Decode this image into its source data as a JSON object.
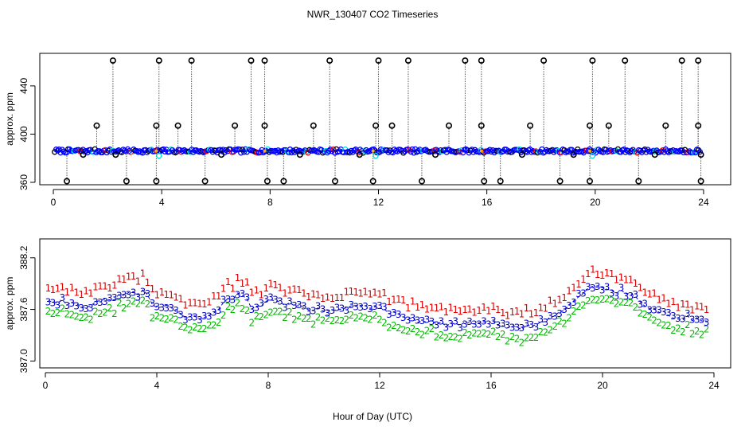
{
  "title": "NWR_130407  CO2 Timeseries",
  "chart_data": [
    {
      "type": "scatter",
      "panel": "top",
      "ylabel": "approx. ppm",
      "xlim": [
        -0.5,
        25.0
      ],
      "ylim": [
        358,
        467
      ],
      "xticks": [
        0,
        4,
        8,
        12,
        16,
        20,
        24
      ],
      "yticks": [
        360,
        400,
        440
      ],
      "baseline": 386,
      "colors": [
        "#000000",
        "#0000ff",
        "#00dddd",
        "#ff0000"
      ],
      "spike_times": [
        2.2,
        3.9,
        5.1,
        7.3,
        7.8,
        10.2,
        12.0,
        13.1,
        15.2,
        15.8,
        18.1,
        19.9,
        21.1,
        23.2,
        23.8
      ],
      "spike_value": 461,
      "mid_times": [
        1.6,
        3.8,
        4.6,
        6.7,
        7.8,
        9.6,
        11.9,
        12.5,
        14.6,
        15.8,
        17.6,
        19.8,
        20.5,
        22.6,
        23.8
      ],
      "mid_value": 407,
      "low_times": [
        0.5,
        2.7,
        3.8,
        5.6,
        7.9,
        8.5,
        10.4,
        11.8,
        13.6,
        15.9,
        16.5,
        18.7,
        19.8,
        21.6,
        23.9
      ],
      "low_value": 361,
      "near_low_times": [
        1.1,
        2.3,
        6.2,
        9.1,
        11.3,
        14.1,
        17.3,
        19.2,
        22.2,
        23.9
      ],
      "near_low_value": 383
    },
    {
      "type": "scatter",
      "panel": "bottom",
      "ylabel": "approx. ppm",
      "xlabel": "Hour of Day (UTC)",
      "xlim": [
        -0.2,
        24.6
      ],
      "ylim": [
        386.92,
        388.42
      ],
      "xticks": [
        0,
        4,
        8,
        12,
        16,
        20,
        24
      ],
      "yticks": [
        387.0,
        387.6,
        388.2
      ],
      "ytick_labels": [
        "387.0",
        "387.6",
        "388.2"
      ],
      "series": [
        {
          "name": "1",
          "symbol": "1",
          "color": "#dd0000",
          "offset": 0.16
        },
        {
          "name": "2",
          "symbol": "2",
          "color": "#00bb00",
          "offset": -0.13
        },
        {
          "name": "3",
          "symbol": "3",
          "color": "#0000cc",
          "offset": 0.0
        }
      ],
      "trend": {
        "x": [
          0.0,
          0.5,
          1.0,
          1.5,
          2.0,
          2.5,
          3.0,
          3.5,
          4.0,
          4.5,
          5.0,
          5.5,
          6.0,
          6.5,
          7.0,
          7.5,
          8.0,
          8.5,
          9.0,
          9.5,
          10.0,
          10.5,
          11.0,
          11.5,
          12.0,
          12.5,
          13.0,
          13.5,
          14.0,
          14.5,
          15.0,
          15.5,
          16.0,
          16.5,
          17.0,
          17.5,
          18.0,
          18.5,
          19.0,
          19.5,
          20.0,
          20.5,
          21.0,
          21.5,
          22.0,
          22.5,
          23.0,
          23.5,
          23.8
        ],
        "y": [
          387.72,
          387.7,
          387.66,
          387.64,
          387.68,
          387.74,
          387.78,
          387.8,
          387.62,
          387.62,
          387.52,
          387.5,
          387.56,
          387.7,
          387.78,
          387.6,
          387.72,
          387.68,
          387.64,
          387.6,
          387.58,
          387.62,
          387.64,
          387.62,
          387.6,
          387.55,
          387.5,
          387.46,
          387.44,
          387.42,
          387.42,
          387.46,
          387.44,
          387.4,
          387.38,
          387.42,
          387.46,
          387.56,
          387.7,
          387.86,
          387.88,
          387.82,
          387.78,
          387.66,
          387.58,
          387.52,
          387.5,
          387.48,
          387.48
        ]
      }
    }
  ]
}
